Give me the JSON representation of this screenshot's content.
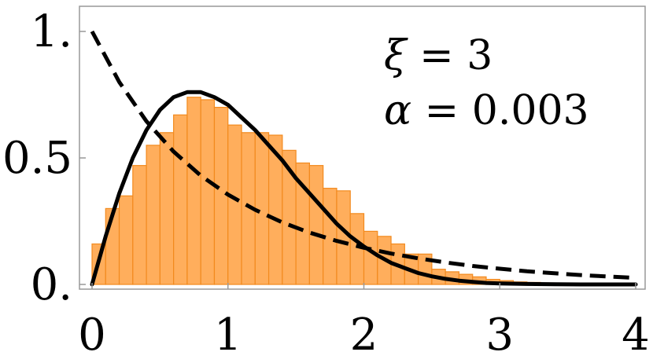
{
  "chart_data": {
    "type": "bar",
    "title": "",
    "xlabel": "",
    "ylabel": "",
    "xlim": [
      -0.08,
      4.0
    ],
    "ylim": [
      -0.01,
      1.13
    ],
    "grid": false,
    "colors": {
      "bar_fill": "#FFAE5C",
      "bar_stroke": "#F28A1E",
      "curve": "#000000",
      "frame": "#999999"
    },
    "x_ticks": [
      {
        "value": 0,
        "label": "0"
      },
      {
        "value": 1,
        "label": "1"
      },
      {
        "value": 2,
        "label": "2"
      },
      {
        "value": 3,
        "label": "3"
      },
      {
        "value": 4,
        "label": "4"
      }
    ],
    "y_ticks": [
      {
        "value": 0,
        "label": "0."
      },
      {
        "value": 0.5,
        "label": "0.5"
      },
      {
        "value": 1,
        "label": "1."
      }
    ],
    "histogram": {
      "bin_width": 0.1,
      "bin_starts": [
        0.0,
        0.1,
        0.2,
        0.3,
        0.4,
        0.5,
        0.6,
        0.7,
        0.8,
        0.9,
        1.0,
        1.1,
        1.2,
        1.3,
        1.4,
        1.5,
        1.6,
        1.7,
        1.8,
        1.9,
        2.0,
        2.1,
        2.2,
        2.3,
        2.4,
        2.5,
        2.6,
        2.7,
        2.8,
        2.9,
        3.0,
        3.1,
        3.2,
        3.3,
        3.4,
        3.5,
        3.6,
        3.7,
        3.8,
        3.9
      ],
      "values": [
        0.16,
        0.3,
        0.35,
        0.47,
        0.55,
        0.6,
        0.67,
        0.74,
        0.73,
        0.7,
        0.63,
        0.6,
        0.6,
        0.59,
        0.53,
        0.48,
        0.47,
        0.38,
        0.37,
        0.28,
        0.21,
        0.19,
        0.16,
        0.12,
        0.12,
        0.06,
        0.05,
        0.04,
        0.03,
        0.02,
        0.015,
        0.01,
        0.008,
        0.006,
        0.005,
        0.004,
        0.003,
        0.002,
        0.002,
        0.001
      ]
    },
    "series": [
      {
        "style": "solid",
        "x": [
          0.0,
          0.1,
          0.2,
          0.3,
          0.4,
          0.5,
          0.6,
          0.7,
          0.8,
          0.9,
          1.0,
          1.1,
          1.2,
          1.3,
          1.4,
          1.5,
          1.6,
          1.7,
          1.8,
          1.9,
          2.0,
          2.1,
          2.2,
          2.3,
          2.4,
          2.5,
          2.6,
          2.7,
          2.8,
          2.9,
          3.0,
          3.2,
          3.4,
          3.6,
          3.8,
          4.0
        ],
        "y": [
          0.0,
          0.19,
          0.36,
          0.5,
          0.61,
          0.69,
          0.74,
          0.76,
          0.76,
          0.74,
          0.71,
          0.66,
          0.61,
          0.55,
          0.49,
          0.42,
          0.36,
          0.3,
          0.24,
          0.19,
          0.15,
          0.115,
          0.085,
          0.065,
          0.045,
          0.032,
          0.022,
          0.015,
          0.01,
          0.006,
          0.004,
          0.002,
          0.001,
          0.0,
          0.0,
          0.0
        ]
      },
      {
        "style": "dashed",
        "x": [
          0.0,
          0.2,
          0.4,
          0.6,
          0.8,
          1.0,
          1.2,
          1.4,
          1.6,
          1.8,
          2.0,
          2.2,
          2.4,
          2.6,
          2.8,
          3.0,
          3.2,
          3.4,
          3.6,
          3.8,
          4.0
        ],
        "y": [
          1.0,
          0.8,
          0.645,
          0.525,
          0.43,
          0.355,
          0.295,
          0.245,
          0.205,
          0.172,
          0.145,
          0.122,
          0.103,
          0.087,
          0.073,
          0.062,
          0.052,
          0.044,
          0.037,
          0.031,
          0.026
        ]
      }
    ],
    "annotations": [
      {
        "symbol": "ξ",
        "text": " = 3"
      },
      {
        "symbol": "α",
        "text": " = 0.003"
      }
    ]
  }
}
